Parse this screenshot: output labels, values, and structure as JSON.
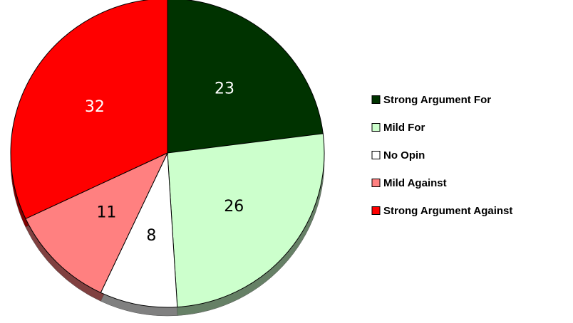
{
  "chart_data": {
    "type": "pie",
    "categories": [
      "Strong Argument For",
      "Mild For",
      "No Opin",
      "Mild Against",
      "Strong Argument Against"
    ],
    "values": [
      23,
      26,
      8,
      11,
      32
    ],
    "colors": [
      "#003300",
      "#ccffcc",
      "#ffffff",
      "#ff8080",
      "#ff0000"
    ],
    "legend": "right"
  }
}
